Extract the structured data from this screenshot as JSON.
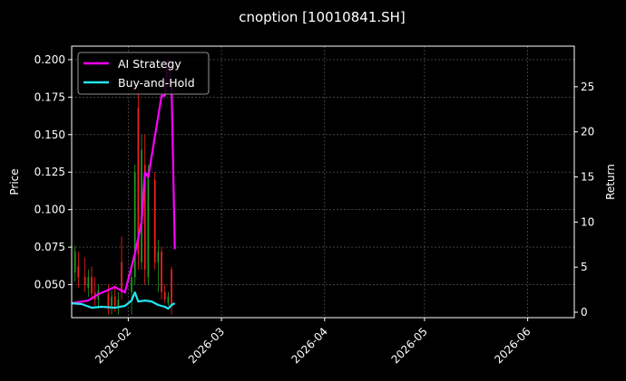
{
  "chart_data": {
    "type": "candlestick+line",
    "title": "cnoption [10010841.SH]",
    "xlabel": "",
    "ylabel_left": "Price",
    "ylabel_right": "Return",
    "x_tick_labels": [
      "2026-02",
      "2026-03",
      "2026-04",
      "2026-05",
      "2026-06"
    ],
    "x_ticks_dates": [
      "2026-02-01",
      "2026-03-01",
      "2026-04-01",
      "2026-05-01",
      "2026-06-01"
    ],
    "xlim": [
      "2026-01-15",
      "2026-06-15"
    ],
    "ylim_left": [
      0.028,
      0.209
    ],
    "y_ticks_left": [
      "0.050",
      "0.075",
      "0.100",
      "0.125",
      "0.150",
      "0.175",
      "0.200"
    ],
    "y_tick_values_left": [
      0.05,
      0.075,
      0.1,
      0.125,
      0.15,
      0.175,
      0.2
    ],
    "ylim_right": [
      -0.6,
      29.5
    ],
    "y_ticks_right": [
      "0",
      "5",
      "10",
      "15",
      "20",
      "25"
    ],
    "y_tick_values_right": [
      0,
      5,
      10,
      15,
      20,
      25
    ],
    "grid": true,
    "legend": {
      "placement": "top-left",
      "entries": [
        {
          "name": "AI Strategy",
          "color": "#ff00ff"
        },
        {
          "name": "Buy-and-Hold",
          "color": "#22e5f0"
        }
      ]
    },
    "colors": {
      "up": "#22a022",
      "down": "#ff2020",
      "ai": "#ff00ff",
      "bh": "#22e5f0"
    },
    "candles": [
      {
        "date": "2026-01-16",
        "open": 0.058,
        "high": 0.076,
        "low": 0.052,
        "close": 0.072
      },
      {
        "date": "2026-01-17",
        "open": 0.062,
        "high": 0.072,
        "low": 0.048,
        "close": 0.055
      },
      {
        "date": "2026-01-19",
        "open": 0.055,
        "high": 0.068,
        "low": 0.045,
        "close": 0.05
      },
      {
        "date": "2026-01-20",
        "open": 0.048,
        "high": 0.06,
        "low": 0.042,
        "close": 0.055
      },
      {
        "date": "2026-01-21",
        "open": 0.055,
        "high": 0.062,
        "low": 0.04,
        "close": 0.044
      },
      {
        "date": "2026-01-22",
        "open": 0.045,
        "high": 0.055,
        "low": 0.036,
        "close": 0.04
      },
      {
        "date": "2026-01-23",
        "open": 0.04,
        "high": 0.05,
        "low": 0.034,
        "close": 0.046
      },
      {
        "date": "2026-01-26",
        "open": 0.044,
        "high": 0.05,
        "low": 0.03,
        "close": 0.034
      },
      {
        "date": "2026-01-27",
        "open": 0.036,
        "high": 0.046,
        "low": 0.03,
        "close": 0.042
      },
      {
        "date": "2026-01-28",
        "open": 0.042,
        "high": 0.05,
        "low": 0.032,
        "close": 0.036
      },
      {
        "date": "2026-01-29",
        "open": 0.036,
        "high": 0.045,
        "low": 0.03,
        "close": 0.04
      },
      {
        "date": "2026-01-30",
        "open": 0.065,
        "high": 0.082,
        "low": 0.04,
        "close": 0.045
      },
      {
        "date": "2026-02-02",
        "open": 0.045,
        "high": 0.06,
        "low": 0.03,
        "close": 0.055
      },
      {
        "date": "2026-02-03",
        "open": 0.055,
        "high": 0.13,
        "low": 0.05,
        "close": 0.125
      },
      {
        "date": "2026-02-04",
        "open": 0.168,
        "high": 0.18,
        "low": 0.06,
        "close": 0.07
      },
      {
        "date": "2026-02-05",
        "open": 0.065,
        "high": 0.15,
        "low": 0.06,
        "close": 0.14
      },
      {
        "date": "2026-02-06",
        "open": 0.13,
        "high": 0.15,
        "low": 0.05,
        "close": 0.06
      },
      {
        "date": "2026-02-07",
        "open": 0.055,
        "high": 0.13,
        "low": 0.05,
        "close": 0.125
      },
      {
        "date": "2026-02-09",
        "open": 0.12,
        "high": 0.125,
        "low": 0.06,
        "close": 0.065
      },
      {
        "date": "2026-02-10",
        "open": 0.065,
        "high": 0.08,
        "low": 0.045,
        "close": 0.072
      },
      {
        "date": "2026-02-11",
        "open": 0.072,
        "high": 0.075,
        "low": 0.04,
        "close": 0.045
      },
      {
        "date": "2026-02-12",
        "open": 0.045,
        "high": 0.05,
        "low": 0.038,
        "close": 0.04
      },
      {
        "date": "2026-02-13",
        "open": 0.038,
        "high": 0.045,
        "low": 0.036,
        "close": 0.042
      },
      {
        "date": "2026-02-14",
        "open": 0.06,
        "high": 0.062,
        "low": 0.03,
        "close": 0.035
      }
    ],
    "series": [
      {
        "name": "AI Strategy",
        "x": [
          "2026-01-15",
          "2026-01-20",
          "2026-01-23",
          "2026-01-28",
          "2026-01-31",
          "2026-02-03",
          "2026-02-05",
          "2026-02-06",
          "2026-02-07",
          "2026-02-11",
          "2026-02-12",
          "2026-02-13",
          "2026-02-14",
          "2026-02-15"
        ],
        "values": [
          1.0,
          1.3,
          2.0,
          2.8,
          2.2,
          6.5,
          10.0,
          15.5,
          15.0,
          24.0,
          24.0,
          28.0,
          25.0,
          7.0
        ]
      },
      {
        "name": "Buy-and-Hold",
        "x": [
          "2026-01-15",
          "2026-01-18",
          "2026-01-21",
          "2026-01-24",
          "2026-01-28",
          "2026-01-31",
          "2026-02-02",
          "2026-02-03",
          "2026-02-04",
          "2026-02-06",
          "2026-02-08",
          "2026-02-10",
          "2026-02-12",
          "2026-02-13",
          "2026-02-14",
          "2026-02-15"
        ],
        "values": [
          1.0,
          0.9,
          0.5,
          0.6,
          0.5,
          0.7,
          1.3,
          2.2,
          1.2,
          1.3,
          1.2,
          0.8,
          0.6,
          0.4,
          0.8,
          1.0
        ]
      }
    ]
  }
}
